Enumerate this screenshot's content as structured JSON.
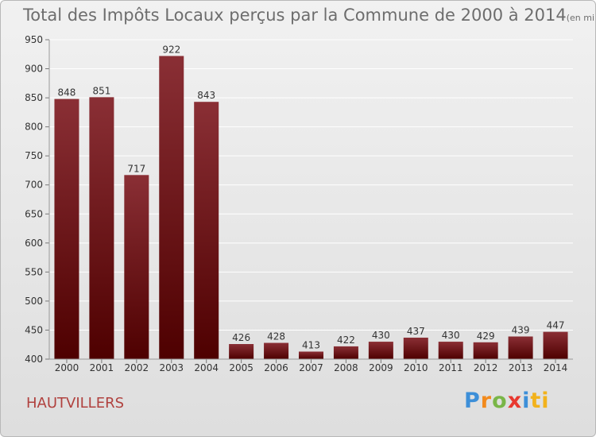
{
  "chart_data": {
    "type": "bar",
    "title": "Total des Impôts Locaux perçus par la Commune de 2000 à 2014",
    "title_unit": "(en milliers d'€)",
    "categories": [
      "2000",
      "2001",
      "2002",
      "2003",
      "2004",
      "2005",
      "2006",
      "2007",
      "2008",
      "2009",
      "2010",
      "2011",
      "2012",
      "2013",
      "2014"
    ],
    "values": [
      848,
      851,
      717,
      922,
      843,
      426,
      428,
      413,
      422,
      430,
      437,
      430,
      429,
      439,
      447
    ],
    "ylim": [
      400,
      950
    ],
    "yticks": [
      400,
      450,
      500,
      550,
      600,
      650,
      700,
      750,
      800,
      850,
      900,
      950
    ],
    "xlabel": "",
    "ylabel": "",
    "grid": true,
    "colors": {
      "bar_top": "#8a2f35",
      "bar_bottom": "#4e0000",
      "grid": "#ffffff",
      "axis_text": "#333333"
    }
  },
  "commune": "HAUTVILLERS",
  "logo": {
    "letters": [
      "P",
      "r",
      "o",
      "x",
      "i",
      "ti"
    ],
    "alt": "Proxiti"
  }
}
